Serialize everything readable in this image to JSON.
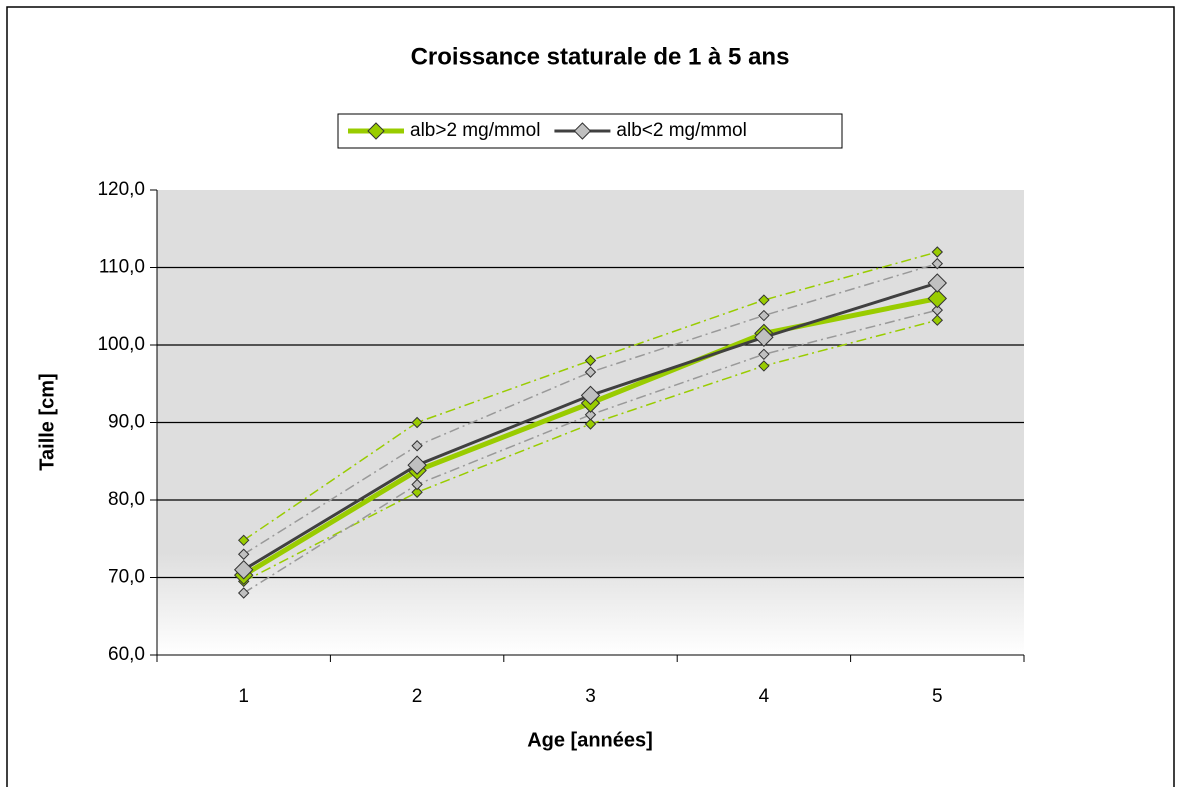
{
  "chart_data": {
    "type": "line",
    "title": "Croissance staturale de 1 à 5 ans",
    "x_label": "Age [années]",
    "y_label": "Taille [cm]",
    "categories": [
      "1",
      "2",
      "3",
      "4",
      "5"
    ],
    "ylim": [
      60,
      120
    ],
    "yticks": [
      {
        "value": 60,
        "label": "60,0"
      },
      {
        "value": 70,
        "label": "70,0"
      },
      {
        "value": 80,
        "label": "80,0"
      },
      {
        "value": 90,
        "label": "90,0"
      },
      {
        "value": 100,
        "label": "100,0"
      },
      {
        "value": 110,
        "label": "110,0"
      },
      {
        "value": 120,
        "label": "120,0"
      }
    ],
    "grid": true,
    "legend": "top",
    "series": [
      {
        "name": "alb>2 mg/mmol",
        "color": "#99cc00",
        "style": "solid",
        "values": [
          70.3,
          83.8,
          92.5,
          101.5,
          106
        ]
      },
      {
        "name": "alb<2 mg/mmol",
        "color": "#404040",
        "style": "solid",
        "values": [
          71,
          84.5,
          93.5,
          101,
          108
        ]
      },
      {
        "color": "#99cc00",
        "style": "dash-dot",
        "values": [
          74.8,
          90,
          98,
          105.8,
          112
        ]
      },
      {
        "color": "#99cc00",
        "style": "dash-dot",
        "values": [
          69.5,
          81,
          89.8,
          97.3,
          103.2
        ]
      },
      {
        "color": "#999999",
        "style": "dash-dot",
        "values": [
          73,
          87,
          96.5,
          103.8,
          110.5
        ]
      },
      {
        "color": "#999999",
        "style": "dash-dot",
        "values": [
          68,
          82,
          91,
          98.8,
          104.5
        ]
      }
    ]
  }
}
